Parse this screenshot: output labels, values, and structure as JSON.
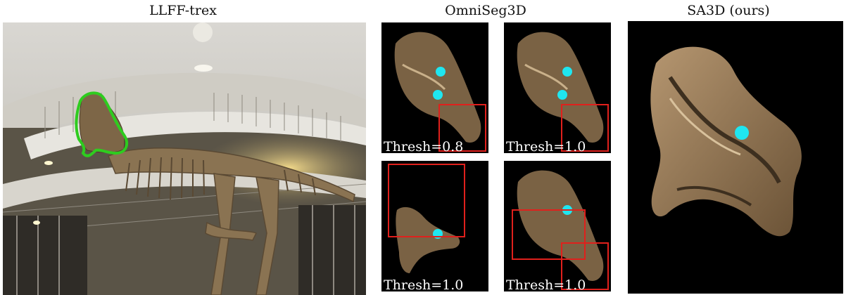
{
  "headers": {
    "left": "LLFF-trex",
    "middle": "OmniSeg3D",
    "right": "SA3D (ours)"
  },
  "thumbnails": [
    {
      "label": "Thresh=0.8"
    },
    {
      "label": "Thresh=1.0"
    },
    {
      "label": "Thresh=1.0"
    },
    {
      "label": "Thresh=1.0"
    }
  ],
  "colors": {
    "mask_outline": "#2ecc1f",
    "prompt_point": "#1fe6f0",
    "box": "#e0201c",
    "thumb_bg": "#000000"
  }
}
